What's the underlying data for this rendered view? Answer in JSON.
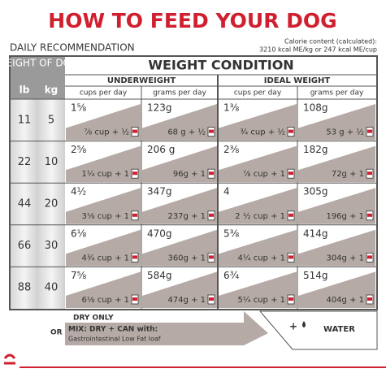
{
  "header": {
    "title": "HOW TO FEED YOUR DOG",
    "subtitle": "DAILY RECOMMENDATION",
    "calorie_label": "Calorie content (calculated):",
    "calorie_value": "3210 kcal ME/kg or 247 kcal ME/cup"
  },
  "table": {
    "weight_of_dog": "WEIGHT OF DOG",
    "lb": "lb",
    "kg": "kg",
    "weight_condition": "WEIGHT CONDITION",
    "groups": [
      "UNDERWEIGHT",
      "IDEAL WEIGHT"
    ],
    "columns": [
      "cups per day",
      "grams per day",
      "cups per day",
      "grams per day"
    ],
    "rows": [
      {
        "lb": "11",
        "kg": "5",
        "cells": [
          {
            "dry": "1⅝",
            "mix": "⅞ cup + ½"
          },
          {
            "dry": "123g",
            "mix": "68 g + ½"
          },
          {
            "dry": "1⅜",
            "mix": "¾ cup + ½"
          },
          {
            "dry": "108g",
            "mix": "53 g + ½"
          }
        ]
      },
      {
        "lb": "22",
        "kg": "10",
        "cells": [
          {
            "dry": "2⅝",
            "mix": "1¼ cup + 1"
          },
          {
            "dry": "206 g",
            "mix": "96g + 1"
          },
          {
            "dry": "2⅜",
            "mix": "⅞ cup + 1"
          },
          {
            "dry": "182g",
            "mix": "72g + 1"
          }
        ]
      },
      {
        "lb": "44",
        "kg": "20",
        "cells": [
          {
            "dry": "4½",
            "mix": "3⅛ cup + 1"
          },
          {
            "dry": "347g",
            "mix": "237g + 1"
          },
          {
            "dry": "4",
            "mix": "2 ½ cup + 1"
          },
          {
            "dry": "305g",
            "mix": "196g + 1"
          }
        ]
      },
      {
        "lb": "66",
        "kg": "30",
        "cells": [
          {
            "dry": "6⅛",
            "mix": "4¾ cup + 1"
          },
          {
            "dry": "470g",
            "mix": "360g + 1"
          },
          {
            "dry": "5⅜",
            "mix": "4¼ cup + 1"
          },
          {
            "dry": "414g",
            "mix": "304g + 1"
          }
        ]
      },
      {
        "lb": "88",
        "kg": "40",
        "cells": [
          {
            "dry": "7⅝",
            "mix": "6⅛ cup + 1"
          },
          {
            "dry": "584g",
            "mix": "474g + 1"
          },
          {
            "dry": "6¾",
            "mix": "5¼ cup + 1"
          },
          {
            "dry": "514g",
            "mix": "404g + 1"
          }
        ]
      }
    ]
  },
  "footer": {
    "dry_only": "DRY ONLY",
    "or": "OR",
    "mix": "MIX: DRY + CAN with:",
    "product": "Gastrointestinal Low Fat loaf",
    "water": "WATER"
  }
}
